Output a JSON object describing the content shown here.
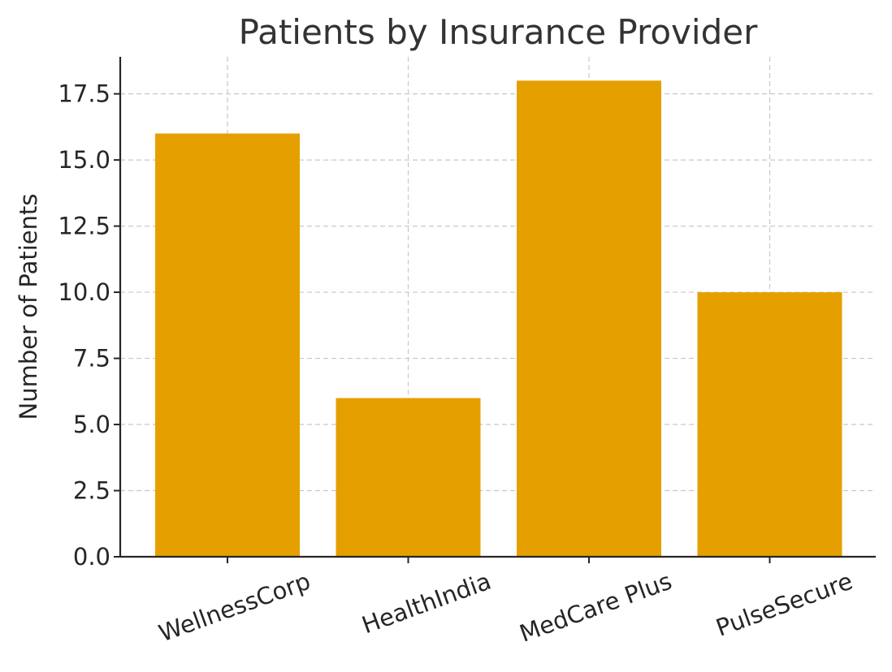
{
  "chart_data": {
    "type": "bar",
    "title": "Patients by Insurance Provider",
    "xlabel": "",
    "ylabel": "Number of Patients",
    "categories": [
      "WellnessCorp",
      "HealthIndia",
      "MedCare Plus",
      "PulseSecure"
    ],
    "values": [
      16,
      6,
      18,
      10
    ],
    "ylim": [
      0,
      18.9
    ],
    "yticks": [
      0.0,
      2.5,
      5.0,
      7.5,
      10.0,
      12.5,
      15.0,
      17.5
    ],
    "ytick_labels": [
      "0.0",
      "2.5",
      "5.0",
      "7.5",
      "10.0",
      "12.5",
      "15.0",
      "17.5"
    ],
    "bar_color": "#E5A000",
    "grid": true,
    "legend": "none"
  }
}
